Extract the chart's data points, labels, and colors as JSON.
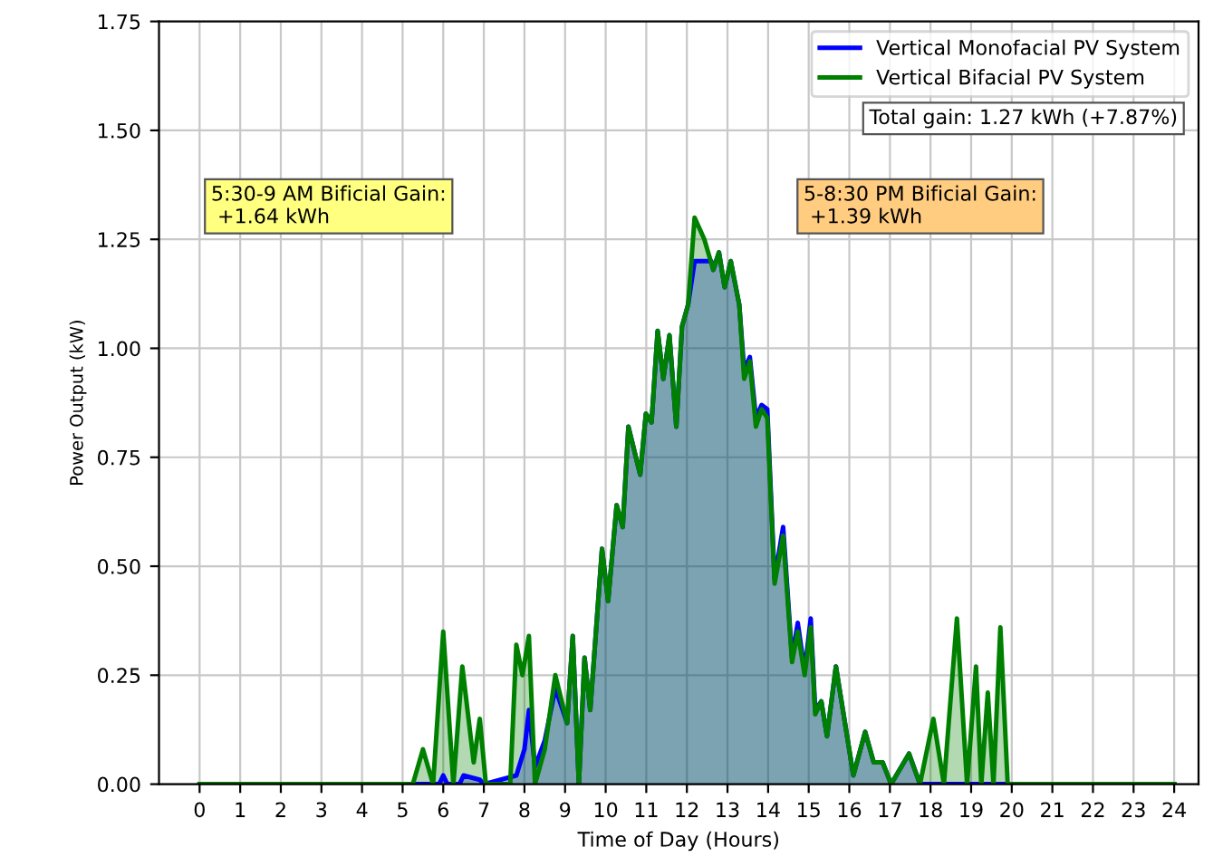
{
  "chart_data": {
    "type": "area",
    "xlabel": "Time of Day (Hours)",
    "ylabel": "Power Output (kW)",
    "xlim": [
      -1,
      24.6
    ],
    "ylim": [
      0,
      1.75
    ],
    "xticks": [
      0,
      1,
      2,
      3,
      4,
      5,
      6,
      7,
      8,
      9,
      10,
      11,
      12,
      13,
      14,
      15,
      16,
      17,
      18,
      19,
      20,
      21,
      22,
      23,
      24
    ],
    "yticks": [
      {
        "value": 0,
        "label": "0.00"
      },
      {
        "value": 0.25,
        "label": "0.25"
      },
      {
        "value": 0.5,
        "label": "0.50"
      },
      {
        "value": 0.75,
        "label": "0.75"
      },
      {
        "value": 1,
        "label": "1.00"
      },
      {
        "value": 1.25,
        "label": "1.25"
      },
      {
        "value": 1.5,
        "label": "1.50"
      },
      {
        "value": 1.75,
        "label": "1.75"
      }
    ],
    "grid": true,
    "legend": "top right",
    "annotations": [
      "5:30-9 AM Bificial Gain:\n +1.64 kWh",
      "5-8:30 PM Bificial Gain:\n +1.39 kWh",
      "Total gain: 1.27 kWh (+7.87%)"
    ],
    "series": [
      {
        "name": "Vertical Monofacial PV System",
        "color": "#0000ff",
        "x": [
          0,
          5.9,
          6.0,
          6.1,
          6.4,
          6.5,
          6.9,
          7.0,
          7.8,
          8.0,
          8.11,
          8.26,
          8.5,
          8.76,
          9.05,
          9.19,
          9.34,
          9.48,
          9.62,
          9.91,
          10.06,
          10.27,
          10.42,
          10.56,
          10.85,
          10.99,
          11.13,
          11.28,
          11.42,
          11.57,
          11.74,
          11.88,
          12.03,
          12.19,
          12.43,
          12.6,
          12.65,
          12.79,
          12.93,
          13.08,
          13.29,
          13.41,
          13.55,
          13.7,
          13.84,
          13.98,
          14.16,
          14.37,
          14.59,
          14.73,
          14.9,
          15.05,
          15.16,
          15.31,
          15.45,
          15.67,
          16.1,
          16.39,
          16.6,
          16.82,
          17.03,
          17.47,
          17.74,
          24
        ],
        "values": [
          0,
          0,
          0.02,
          0,
          0,
          0.02,
          0.01,
          0,
          0.02,
          0.08,
          0.17,
          0.04,
          0.1,
          0.22,
          0.14,
          0.34,
          0,
          0.29,
          0.17,
          0.54,
          0.42,
          0.64,
          0.59,
          0.82,
          0.71,
          0.85,
          0.83,
          1.04,
          0.93,
          1.03,
          0.82,
          1.05,
          1.1,
          1.2,
          1.2,
          1.2,
          1.18,
          1.22,
          1.14,
          1.2,
          1.1,
          0.95,
          0.98,
          0.84,
          0.87,
          0.86,
          0.47,
          0.59,
          0.29,
          0.37,
          0.26,
          0.38,
          0.17,
          0.19,
          0.11,
          0.27,
          0.02,
          0.12,
          0.05,
          0.05,
          0,
          0.07,
          0,
          0
        ]
      },
      {
        "name": "Vertical Bifacial PV System",
        "color": "#008000",
        "x": [
          0,
          5.25,
          5.5,
          5.75,
          6.0,
          6.25,
          6.47,
          6.75,
          6.9,
          7.05,
          7.65,
          7.8,
          7.95,
          8.11,
          8.26,
          8.5,
          8.76,
          9.05,
          9.19,
          9.34,
          9.48,
          9.62,
          9.91,
          10.06,
          10.27,
          10.42,
          10.56,
          10.85,
          10.99,
          11.13,
          11.28,
          11.42,
          11.57,
          11.74,
          11.88,
          12.03,
          12.19,
          12.43,
          12.65,
          12.79,
          12.93,
          13.08,
          13.29,
          13.41,
          13.55,
          13.7,
          13.84,
          13.98,
          14.16,
          14.37,
          14.59,
          14.73,
          14.9,
          15.05,
          15.16,
          15.31,
          15.45,
          15.67,
          16.1,
          16.39,
          16.6,
          16.82,
          17.03,
          17.47,
          17.74,
          18.07,
          18.33,
          18.65,
          18.9,
          19.12,
          19.25,
          19.41,
          19.55,
          19.72,
          19.9,
          24
        ],
        "values": [
          0,
          0,
          0.08,
          0,
          0.35,
          0,
          0.27,
          0.05,
          0.15,
          0,
          0,
          0.32,
          0.25,
          0.34,
          0,
          0.08,
          0.25,
          0.14,
          0.34,
          0,
          0.29,
          0.17,
          0.54,
          0.42,
          0.64,
          0.59,
          0.82,
          0.71,
          0.85,
          0.83,
          1.04,
          0.93,
          1.03,
          0.82,
          1.05,
          1.1,
          1.3,
          1.25,
          1.18,
          1.22,
          1.14,
          1.2,
          1.1,
          0.93,
          0.97,
          0.82,
          0.86,
          0.84,
          0.46,
          0.57,
          0.28,
          0.35,
          0.25,
          0.36,
          0.16,
          0.19,
          0.11,
          0.27,
          0.02,
          0.12,
          0.05,
          0.05,
          0,
          0.07,
          0,
          0.15,
          0,
          0.38,
          0,
          0.27,
          0,
          0.21,
          0,
          0.36,
          0,
          0
        ]
      }
    ]
  }
}
